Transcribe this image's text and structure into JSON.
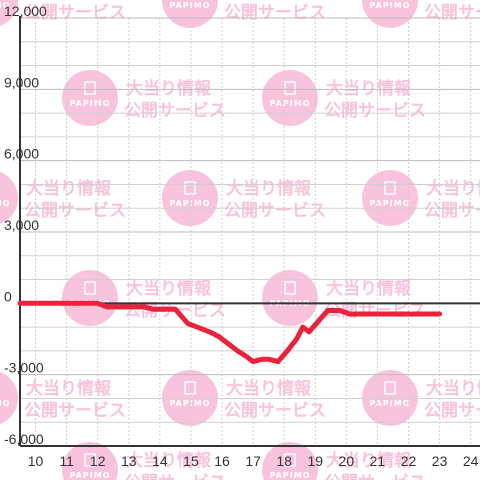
{
  "chart_data": {
    "type": "line",
    "title": "",
    "xlabel": "",
    "ylabel": "",
    "xlim": [
      9.5,
      24.3
    ],
    "ylim": [
      -6000,
      12000
    ],
    "x_ticks": [
      10,
      11,
      12,
      13,
      14,
      15,
      16,
      17,
      18,
      19,
      20,
      21,
      22,
      23,
      24
    ],
    "y_ticks": [
      {
        "value": 12000,
        "label": "12,000"
      },
      {
        "value": 9000,
        "label": "9,000"
      },
      {
        "value": 6000,
        "label": "6,000"
      },
      {
        "value": 3000,
        "label": "3,000"
      },
      {
        "value": 0,
        "label": "0"
      },
      {
        "value": -3000,
        "label": "-3,000"
      },
      {
        "value": -6000,
        "label": "-6,000"
      }
    ],
    "grid": true,
    "line_color": "#e8233a",
    "zero_line_color": "#333333",
    "series": [
      {
        "x": [
          9.5,
          12.0,
          12.3,
          13.5,
          13.8,
          14.5,
          14.9,
          15.2,
          15.6,
          15.9,
          16.3,
          16.5,
          16.8,
          17.0,
          17.3,
          17.5,
          17.8,
          18.1,
          18.4,
          18.6,
          18.8,
          19.1,
          19.4,
          19.8,
          20.1,
          20.5,
          21.0,
          22.0,
          23.0
        ],
        "y": [
          0,
          0,
          -150,
          -150,
          -250,
          -250,
          -850,
          -1000,
          -1200,
          -1400,
          -1800,
          -2000,
          -2250,
          -2450,
          -2350,
          -2350,
          -2450,
          -2000,
          -1500,
          -1000,
          -1200,
          -750,
          -300,
          -300,
          -450,
          -450,
          -450,
          -450,
          -450
        ]
      }
    ]
  },
  "watermark": {
    "line1": "大当り情報",
    "line2": "公開サービス",
    "logo_text": "PAPIMO",
    "color": "#f9c3dd"
  }
}
